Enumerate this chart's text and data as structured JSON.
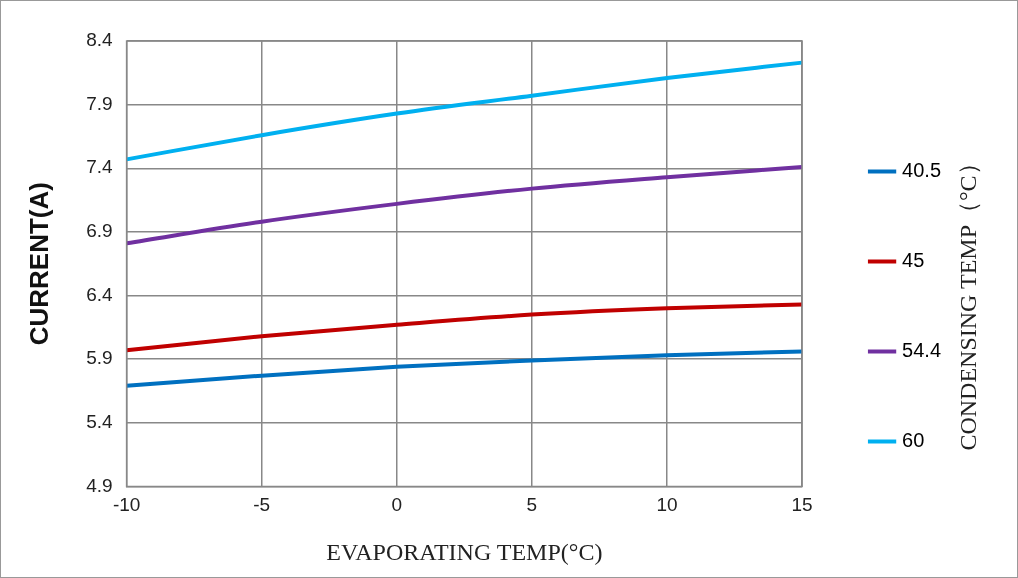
{
  "chart_data": {
    "type": "line",
    "xlabel": "EVAPORATING TEMP(°C)",
    "ylabel": "CURRENT(A)",
    "legend_title": "CONDENSING TEMP（°C）",
    "x": [
      -10,
      -5,
      0,
      5,
      10,
      15
    ],
    "series": [
      {
        "name": "40.5",
        "color": "#0070c0",
        "values": [
          5.69,
          5.77,
          5.84,
          5.89,
          5.93,
          5.96
        ]
      },
      {
        "name": "45",
        "color": "#c00000",
        "values": [
          5.97,
          6.08,
          6.17,
          6.25,
          6.3,
          6.33
        ]
      },
      {
        "name": "54.4",
        "color": "#7030a0",
        "values": [
          6.81,
          6.98,
          7.12,
          7.24,
          7.33,
          7.41
        ]
      },
      {
        "name": "60",
        "color": "#00b0f0",
        "values": [
          7.47,
          7.66,
          7.83,
          7.97,
          8.11,
          8.23
        ]
      }
    ],
    "xlim": [
      -10,
      15
    ],
    "xticks": [
      -10,
      -5,
      0,
      5,
      10,
      15
    ],
    "ylim": [
      4.9,
      8.4
    ],
    "yticks": [
      4.9,
      5.4,
      5.9,
      6.4,
      6.9,
      7.4,
      7.9,
      8.4
    ],
    "grid": true,
    "legend": "right",
    "marker": "none",
    "line_style": "solid"
  }
}
